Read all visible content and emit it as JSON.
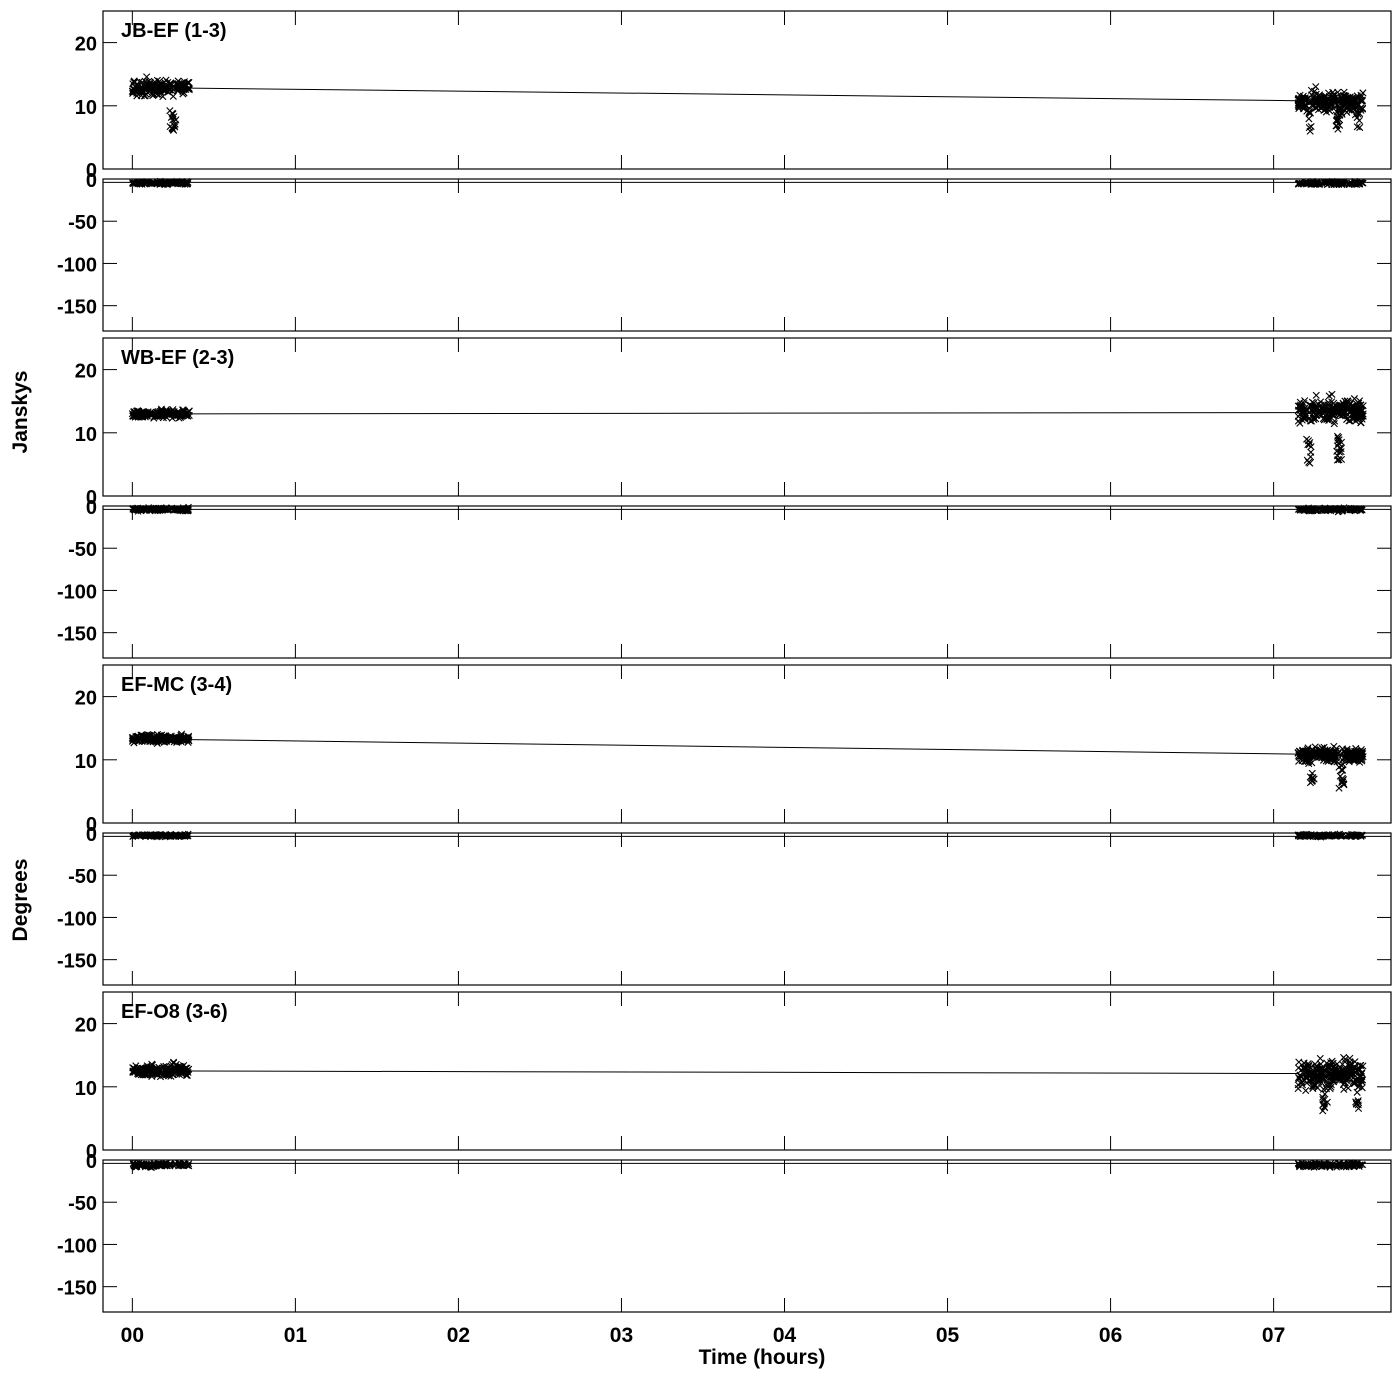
{
  "chart_data": {
    "type": "scatter",
    "header_text": "",
    "xlabel": "Time (hours)",
    "ylabel_amplitude": "Janskys",
    "ylabel_phase": "Degrees",
    "x_ticks": [
      "00",
      "01",
      "02",
      "03",
      "04",
      "05",
      "06",
      "07"
    ],
    "xlim_hours": [
      -0.18,
      7.72
    ],
    "amp_ylim": [
      0,
      25
    ],
    "amp_ticks": [
      0,
      10,
      20
    ],
    "phase_ylim": [
      -180,
      0
    ],
    "phase_ticks": [
      0,
      -50,
      -100,
      -150
    ],
    "scan_windows_hours": [
      [
        0.0,
        0.35
      ],
      [
        7.15,
        7.55
      ]
    ],
    "panels": [
      {
        "label": "JB-EF (1-3)",
        "model_amp": [
          [
            0.35,
            12.8
          ],
          [
            7.15,
            10.8
          ]
        ],
        "scan1_amp_mean": 12.8,
        "scan1_amp_spread": 1.2,
        "scan2_amp_mean": 10.7,
        "scan2_amp_spread": 1.6,
        "scan1_dips": [
          [
            0.23,
            0.27,
            6.0
          ]
        ],
        "scan2_dips": [
          [
            7.2,
            7.23,
            5.5
          ],
          [
            7.38,
            7.42,
            6.0
          ],
          [
            7.5,
            7.53,
            6.5
          ]
        ],
        "phase_mean": -5,
        "phase_spread": 2
      },
      {
        "label": "WB-EF (2-3)",
        "model_amp": [
          [
            0.35,
            13.0
          ],
          [
            7.15,
            13.2
          ]
        ],
        "scan1_amp_mean": 13.0,
        "scan1_amp_spread": 0.6,
        "scan2_amp_mean": 13.5,
        "scan2_amp_spread": 2.0,
        "scan1_dips": [],
        "scan2_dips": [
          [
            7.2,
            7.23,
            5.0
          ],
          [
            7.38,
            7.42,
            5.5
          ]
        ],
        "phase_mean": -4,
        "phase_spread": 2
      },
      {
        "label": "EF-MC (3-4)",
        "model_amp": [
          [
            0.35,
            13.2
          ],
          [
            7.15,
            10.9
          ]
        ],
        "scan1_amp_mean": 13.3,
        "scan1_amp_spread": 0.6,
        "scan2_amp_mean": 10.8,
        "scan2_amp_spread": 1.1,
        "scan1_dips": [],
        "scan2_dips": [
          [
            7.21,
            7.25,
            6.0
          ],
          [
            7.4,
            7.44,
            5.5
          ]
        ],
        "phase_mean": -3,
        "phase_spread": 1.5
      },
      {
        "label": "EF-O8 (3-6)",
        "model_amp": [
          [
            0.35,
            12.5
          ],
          [
            7.15,
            12.1
          ]
        ],
        "scan1_amp_mean": 12.6,
        "scan1_amp_spread": 0.9,
        "scan2_amp_mean": 12.0,
        "scan2_amp_spread": 2.2,
        "scan1_dips": [],
        "scan2_dips": [
          [
            7.3,
            7.33,
            6.0
          ],
          [
            7.5,
            7.53,
            6.0
          ]
        ],
        "phase_mean": -6,
        "phase_spread": 2.5
      }
    ]
  }
}
